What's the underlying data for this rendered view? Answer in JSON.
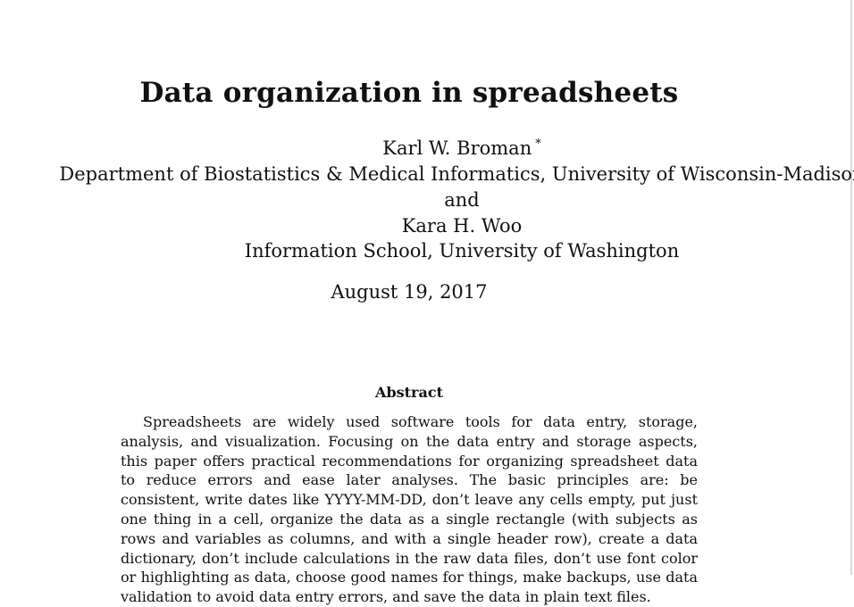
{
  "paper": {
    "title": "Data organization in spreadsheets",
    "authors": [
      {
        "name": "Karl W. Broman",
        "footnote_mark": "*"
      },
      {
        "affiliation": "Department of Biostatistics & Medical Informatics, University of Wisconsin-Madison"
      },
      {
        "connector": "and"
      },
      {
        "name": "Kara H. Woo"
      },
      {
        "affiliation": "Information School, University of Washington"
      }
    ],
    "date": "August 19, 2017",
    "abstract": {
      "heading": "Abstract",
      "text": "Spreadsheets are widely used software tools for data entry, storage, analysis, and visualization. Focusing on the data entry and storage aspects, this paper offers practical recommendations for organizing spreadsheet data to reduce errors and ease later analyses. The basic principles are: be consistent, write dates like YYYY-MM-DD, don’t leave any cells empty, put just one thing in a cell, organize the data as a single rectangle (with subjects as rows and variables as columns, and with a single header row), create a data dictionary, don’t include calculations in the raw data files, don’t use font color or highlighting as data, choose good names for things, make backups, use data validation to avoid data entry errors, and save the data in plain text files."
    }
  }
}
